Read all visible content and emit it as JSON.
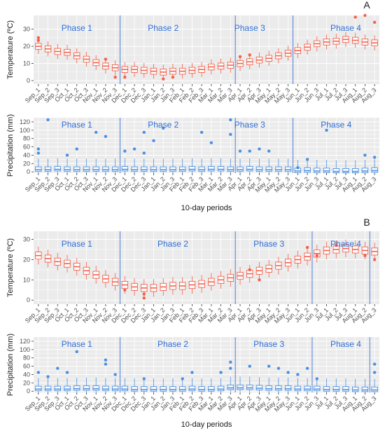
{
  "colors": {
    "panel_bg": "#ebebeb",
    "grid": "#ffffff",
    "temp_box": "#f4614b",
    "precip_box": "#4a90e2",
    "phase_line": "#4a7fd9",
    "phase_text": "#2f6fd6"
  },
  "periods": [
    "Sep_1",
    "Sep_2",
    "Sep_3",
    "Oct_1",
    "Oct_2",
    "Oct_3",
    "Nov_1",
    "Nov_2",
    "Nov_3",
    "Dec_1",
    "Dec_2",
    "Dec_3",
    "Jan_1",
    "Jan_2",
    "Jan_3",
    "Feb_1",
    "Feb_2",
    "Feb_3",
    "Mar_1",
    "Mar_2",
    "Mar_3",
    "Apr_1",
    "Apr_2",
    "Apr_3",
    "May_1",
    "May_2",
    "May_3",
    "Jun_1",
    "Jun_2",
    "Jun_3",
    "Jul_1",
    "Jul_2",
    "Jul_3",
    "Aug_1",
    "Aug_2",
    "Aug_3"
  ],
  "chart_data": [
    {
      "type": "box",
      "panel_label": "A",
      "ylabel": "Temperature (ºC)",
      "xlabel": "",
      "ylim": [
        -2,
        38
      ],
      "yticks": [
        0,
        10,
        20,
        30
      ],
      "phase_boundaries_after": [
        "Nov_3",
        "Mar_3",
        "May_3"
      ],
      "phases": [
        {
          "name": "Phase 1",
          "at": "Oct_2"
        },
        {
          "name": "Phase 2",
          "at": "Jan_2"
        },
        {
          "name": "Phase 3",
          "at": "Apr_2"
        },
        {
          "name": "Phase 4",
          "at": "Jul_3"
        }
      ],
      "medians": [
        20,
        18.5,
        17,
        16.5,
        14.5,
        12.5,
        10.5,
        8.5,
        7.5,
        6.5,
        6.5,
        6,
        5.5,
        5,
        5.5,
        5.5,
        6,
        6.5,
        8,
        8.5,
        9,
        10,
        11,
        12,
        13,
        14.5,
        16,
        17.5,
        19.5,
        21.5,
        22.5,
        23,
        24,
        23.5,
        22.5,
        22
      ],
      "outliers": [
        [
          0,
          25
        ],
        [
          0,
          23.5
        ],
        [
          7,
          12.5
        ],
        [
          8,
          2
        ],
        [
          9,
          2
        ],
        [
          13,
          1
        ],
        [
          14,
          2
        ],
        [
          21,
          14
        ],
        [
          22,
          15
        ],
        [
          33,
          37
        ],
        [
          34,
          38
        ],
        [
          35,
          34
        ]
      ]
    },
    {
      "type": "box",
      "panel_label": "",
      "ylabel": "Precipitation (mm)",
      "xlabel": "10-day periods",
      "ylim": [
        -3,
        130
      ],
      "yticks": [
        0,
        20,
        40,
        60,
        80,
        100,
        120
      ],
      "phase_boundaries_after": [
        "Nov_3",
        "Mar_3",
        "May_3"
      ],
      "phases": [
        {
          "name": "Phase 1",
          "at": "Oct_2"
        },
        {
          "name": "Phase 2",
          "at": "Jan_2"
        },
        {
          "name": "Phase 3",
          "at": "Apr_2"
        },
        {
          "name": "Phase 4",
          "at": "Jul_2"
        }
      ],
      "medians": [
        5,
        5,
        6,
        5,
        5,
        5,
        5,
        5,
        5,
        6,
        5,
        5,
        5,
        5,
        5,
        5,
        6,
        5,
        6,
        6,
        5,
        5,
        6,
        5,
        5,
        5,
        5,
        2,
        3,
        2,
        2,
        1,
        1,
        1,
        2,
        3
      ],
      "outliers": [
        [
          0,
          55
        ],
        [
          0,
          45
        ],
        [
          1,
          125
        ],
        [
          3,
          40
        ],
        [
          4,
          55
        ],
        [
          6,
          95
        ],
        [
          7,
          85
        ],
        [
          9,
          50
        ],
        [
          10,
          55
        ],
        [
          11,
          95
        ],
        [
          11,
          45
        ],
        [
          12,
          75
        ],
        [
          13,
          105
        ],
        [
          17,
          95
        ],
        [
          18,
          70
        ],
        [
          20,
          125
        ],
        [
          20,
          90
        ],
        [
          21,
          50
        ],
        [
          22,
          50
        ],
        [
          23,
          55
        ],
        [
          24,
          50
        ],
        [
          27,
          10
        ],
        [
          28,
          30
        ],
        [
          30,
          100
        ],
        [
          34,
          40
        ],
        [
          35,
          35
        ]
      ]
    },
    {
      "type": "box",
      "panel_label": "B",
      "ylabel": "Temperature (ºC)",
      "xlabel": "",
      "ylim": [
        -2,
        34
      ],
      "yticks": [
        0,
        10,
        20,
        30
      ],
      "phase_boundaries_after": [
        "Nov_3",
        "Mar_3",
        "Jun_2",
        "Aug_2"
      ],
      "phases": [
        {
          "name": "Phase 1",
          "at": "Oct_2"
        },
        {
          "name": "Phase 2",
          "at": "Jan_3"
        },
        {
          "name": "Phase 3",
          "at": "May_1"
        },
        {
          "name": "Phase 4",
          "at": "Jul_3"
        }
      ],
      "medians": [
        22,
        20.5,
        19,
        18,
        16.5,
        14.5,
        12.5,
        10.5,
        9,
        7.5,
        6.5,
        6,
        6,
        6.5,
        7,
        7,
        7.5,
        8,
        9,
        10,
        11,
        12,
        13,
        14.5,
        15.5,
        17,
        18.5,
        20,
        21.5,
        23,
        24.5,
        25,
        25.5,
        25,
        24.5,
        24
      ],
      "outliers": [
        [
          9,
          5
        ],
        [
          11,
          1
        ],
        [
          11,
          3
        ],
        [
          22,
          15
        ],
        [
          23,
          10
        ],
        [
          28,
          26
        ],
        [
          29,
          22
        ],
        [
          31,
          27
        ],
        [
          34,
          22
        ],
        [
          35,
          20
        ]
      ]
    },
    {
      "type": "box",
      "panel_label": "",
      "ylabel": "Precipitation (mm)",
      "xlabel": "10-day periods",
      "ylim": [
        -3,
        130
      ],
      "yticks": [
        0,
        20,
        40,
        60,
        80,
        100,
        120
      ],
      "phase_boundaries_after": [
        "Nov_3",
        "Mar_3",
        "Jun_2",
        "Aug_2"
      ],
      "phases": [
        {
          "name": "Phase 1",
          "at": "Oct_2"
        },
        {
          "name": "Phase 2",
          "at": "Jan_3"
        },
        {
          "name": "Phase 3",
          "at": "May_1"
        },
        {
          "name": "Phase 4",
          "at": "Jul_3"
        }
      ],
      "medians": [
        5,
        5,
        5,
        5,
        6,
        6,
        6,
        5,
        5,
        5,
        4,
        4,
        4,
        4,
        4,
        4,
        5,
        4,
        4,
        5,
        8,
        8,
        8,
        7,
        6,
        6,
        6,
        5,
        5,
        5,
        4,
        4,
        4,
        3,
        3,
        3
      ],
      "outliers": [
        [
          0,
          45
        ],
        [
          1,
          35
        ],
        [
          2,
          55
        ],
        [
          3,
          45
        ],
        [
          4,
          95
        ],
        [
          7,
          75
        ],
        [
          7,
          65
        ],
        [
          8,
          40
        ],
        [
          11,
          30
        ],
        [
          15,
          30
        ],
        [
          16,
          45
        ],
        [
          19,
          45
        ],
        [
          20,
          70
        ],
        [
          20,
          55
        ],
        [
          22,
          60
        ],
        [
          24,
          60
        ],
        [
          25,
          55
        ],
        [
          26,
          45
        ],
        [
          27,
          40
        ],
        [
          28,
          55
        ],
        [
          29,
          30
        ],
        [
          35,
          65
        ],
        [
          35,
          45
        ]
      ]
    }
  ]
}
